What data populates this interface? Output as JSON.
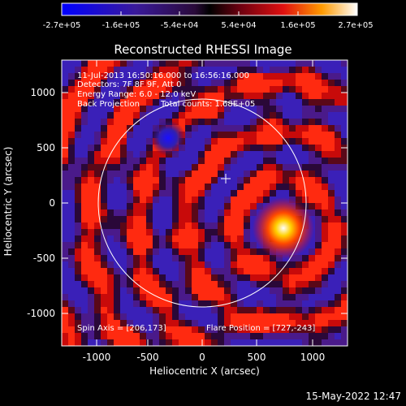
{
  "colorbar": {
    "ticks": [
      "-2.7e+05",
      "-1.6e+05",
      "-5.4e+04",
      "5.4e+04",
      "1.6e+05",
      "2.7e+05"
    ],
    "range": [
      -270000,
      270000
    ]
  },
  "title": "Reconstructed RHESSI Image",
  "info": {
    "time": "11-Jul-2013 16:50:16.000 to 16:56:16.000",
    "detectors": "Detectors: 7F 8F 9F, Att 0",
    "energy": "Energy Range: 6.0 - 12.0 keV",
    "method": "Back Projection",
    "total": "Total counts: 1.68E+05"
  },
  "axes": {
    "xlabel": "Heliocentric X (arcsec)",
    "ylabel": "Heliocentric Y (arcsec)",
    "xticks": [
      "-1000",
      "-500",
      "0",
      "500",
      "1000"
    ],
    "yticks": [
      "1000",
      "500",
      "0",
      "-500",
      "-1000"
    ],
    "xlim": [
      -1300,
      1300
    ],
    "ylim": [
      -1300,
      1300
    ]
  },
  "annotations": {
    "spin_axis": "Spin Axis = [206,173]",
    "flare_position": "Flare Position = [727,-243]"
  },
  "footer": {
    "date": "15-May-2022 12:47"
  },
  "colors": {
    "background": "#000000",
    "foreground": "#ffffff"
  }
}
